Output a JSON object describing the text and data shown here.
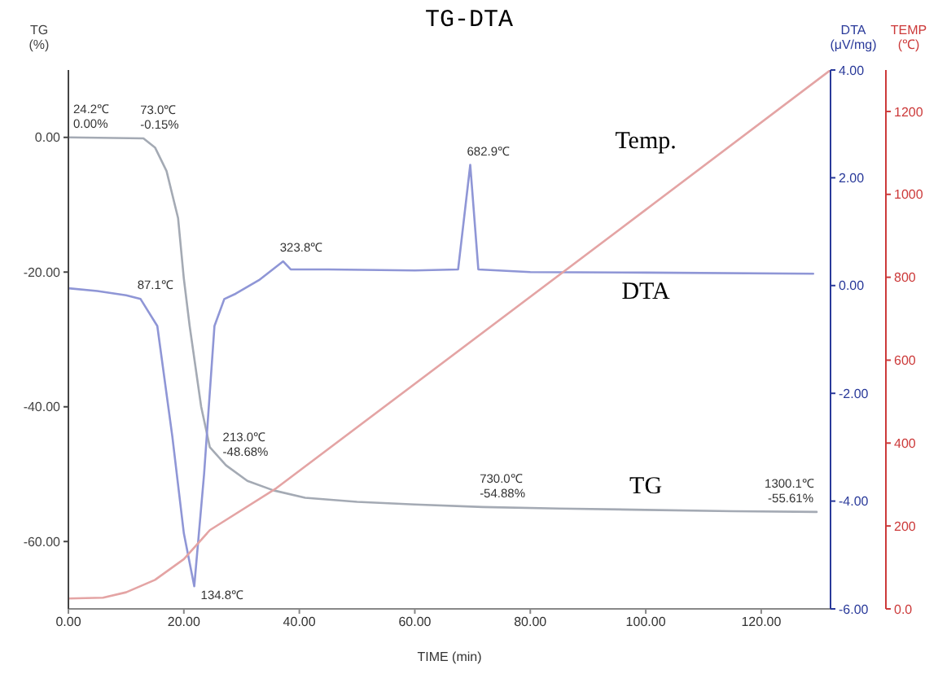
{
  "chart_data": {
    "type": "line",
    "title": "TG-DTA",
    "xlabel": "TIME (min)",
    "ylabel": "TG\n(%)",
    "y2label": "DTA\n(μV/mg)",
    "y3label": "TEMP\n(℃)",
    "xlim": [
      0,
      132
    ],
    "xticks": [
      {
        "value": 0,
        "label": "0.00"
      },
      {
        "value": 20,
        "label": "20.00"
      },
      {
        "value": 40,
        "label": "40.00"
      },
      {
        "value": 60,
        "label": "60.00"
      },
      {
        "value": 80,
        "label": "80.00"
      },
      {
        "value": 100,
        "label": "100.00"
      },
      {
        "value": 120,
        "label": "120.00"
      }
    ],
    "ylim": [
      -70,
      10
    ],
    "yticks": [
      {
        "value": 0,
        "label": "0.00"
      },
      {
        "value": -20,
        "label": "-20.00"
      },
      {
        "value": -40,
        "label": "-40.00"
      },
      {
        "value": -60,
        "label": "-60.00"
      }
    ],
    "y2lim": [
      -6,
      4
    ],
    "y2ticks": [
      {
        "value": 4,
        "label": "4.00"
      },
      {
        "value": 2,
        "label": "2.00"
      },
      {
        "value": 0,
        "label": "0.00"
      },
      {
        "value": -2,
        "label": "-2.00"
      },
      {
        "value": -4,
        "label": "-4.00"
      },
      {
        "value": -6,
        "label": "-6.00"
      }
    ],
    "y3lim": [
      0,
      1300
    ],
    "y3ticks": [
      {
        "value": 0,
        "label": "0.0"
      },
      200,
      400,
      600,
      800,
      1000,
      1200
    ],
    "annotations": [
      "87.1℃",
      "134.8℃",
      "323.8℃",
      "682.9℃"
    ],
    "grid": false,
    "legend": false,
    "series": [
      {
        "name": "TG",
        "color": "#a4aab4",
        "x": [
          0,
          13,
          15,
          17,
          19,
          20,
          21,
          23,
          24.5,
          27.3,
          31,
          35.5,
          41,
          50,
          60,
          71.8,
          85,
          100,
          115,
          129.6
        ],
        "values": [
          0,
          -0.15,
          -1.5,
          -5,
          -12,
          -21,
          -28,
          -40,
          -46,
          -48.68,
          -51,
          -52.4,
          -53.5,
          -54.1,
          -54.5,
          -54.88,
          -55.1,
          -55.3,
          -55.5,
          -55.61
        ],
        "value_labels": [
          "24.2℃\n0.00%",
          "73.0℃\n-0.15%",
          null,
          null,
          null,
          null,
          null,
          null,
          null,
          "213.0℃\n-48.68%",
          null,
          null,
          null,
          null,
          null,
          "730.0℃\n-54.88%",
          null,
          null,
          null,
          "1300.1℃\n-55.61%"
        ]
      },
      {
        "name": "DTA",
        "color": "#8f96d6",
        "axis": "y2",
        "x": [
          0,
          5,
          10,
          12.5,
          15.4,
          18,
          20,
          21.8,
          23.5,
          25.3,
          27,
          29,
          33,
          37.2,
          38.5,
          45,
          60,
          67.5,
          69.6,
          71,
          80,
          100,
          129
        ],
        "values": [
          -0.05,
          -0.1,
          -0.18,
          -0.25,
          -0.75,
          -2.8,
          -4.6,
          -5.58,
          -3.5,
          -0.75,
          -0.25,
          -0.15,
          0.1,
          0.45,
          0.3,
          0.3,
          0.28,
          0.3,
          2.24,
          0.3,
          0.25,
          0.24,
          0.22
        ]
      },
      {
        "name": "Temp.",
        "color": "#e4a4a4",
        "axis": "y3",
        "x": [
          0,
          6,
          10,
          15,
          20,
          24.5,
          36,
          100,
          132
        ],
        "values": [
          25,
          27,
          40,
          70,
          120,
          190,
          291,
          963,
          1300
        ]
      }
    ]
  }
}
